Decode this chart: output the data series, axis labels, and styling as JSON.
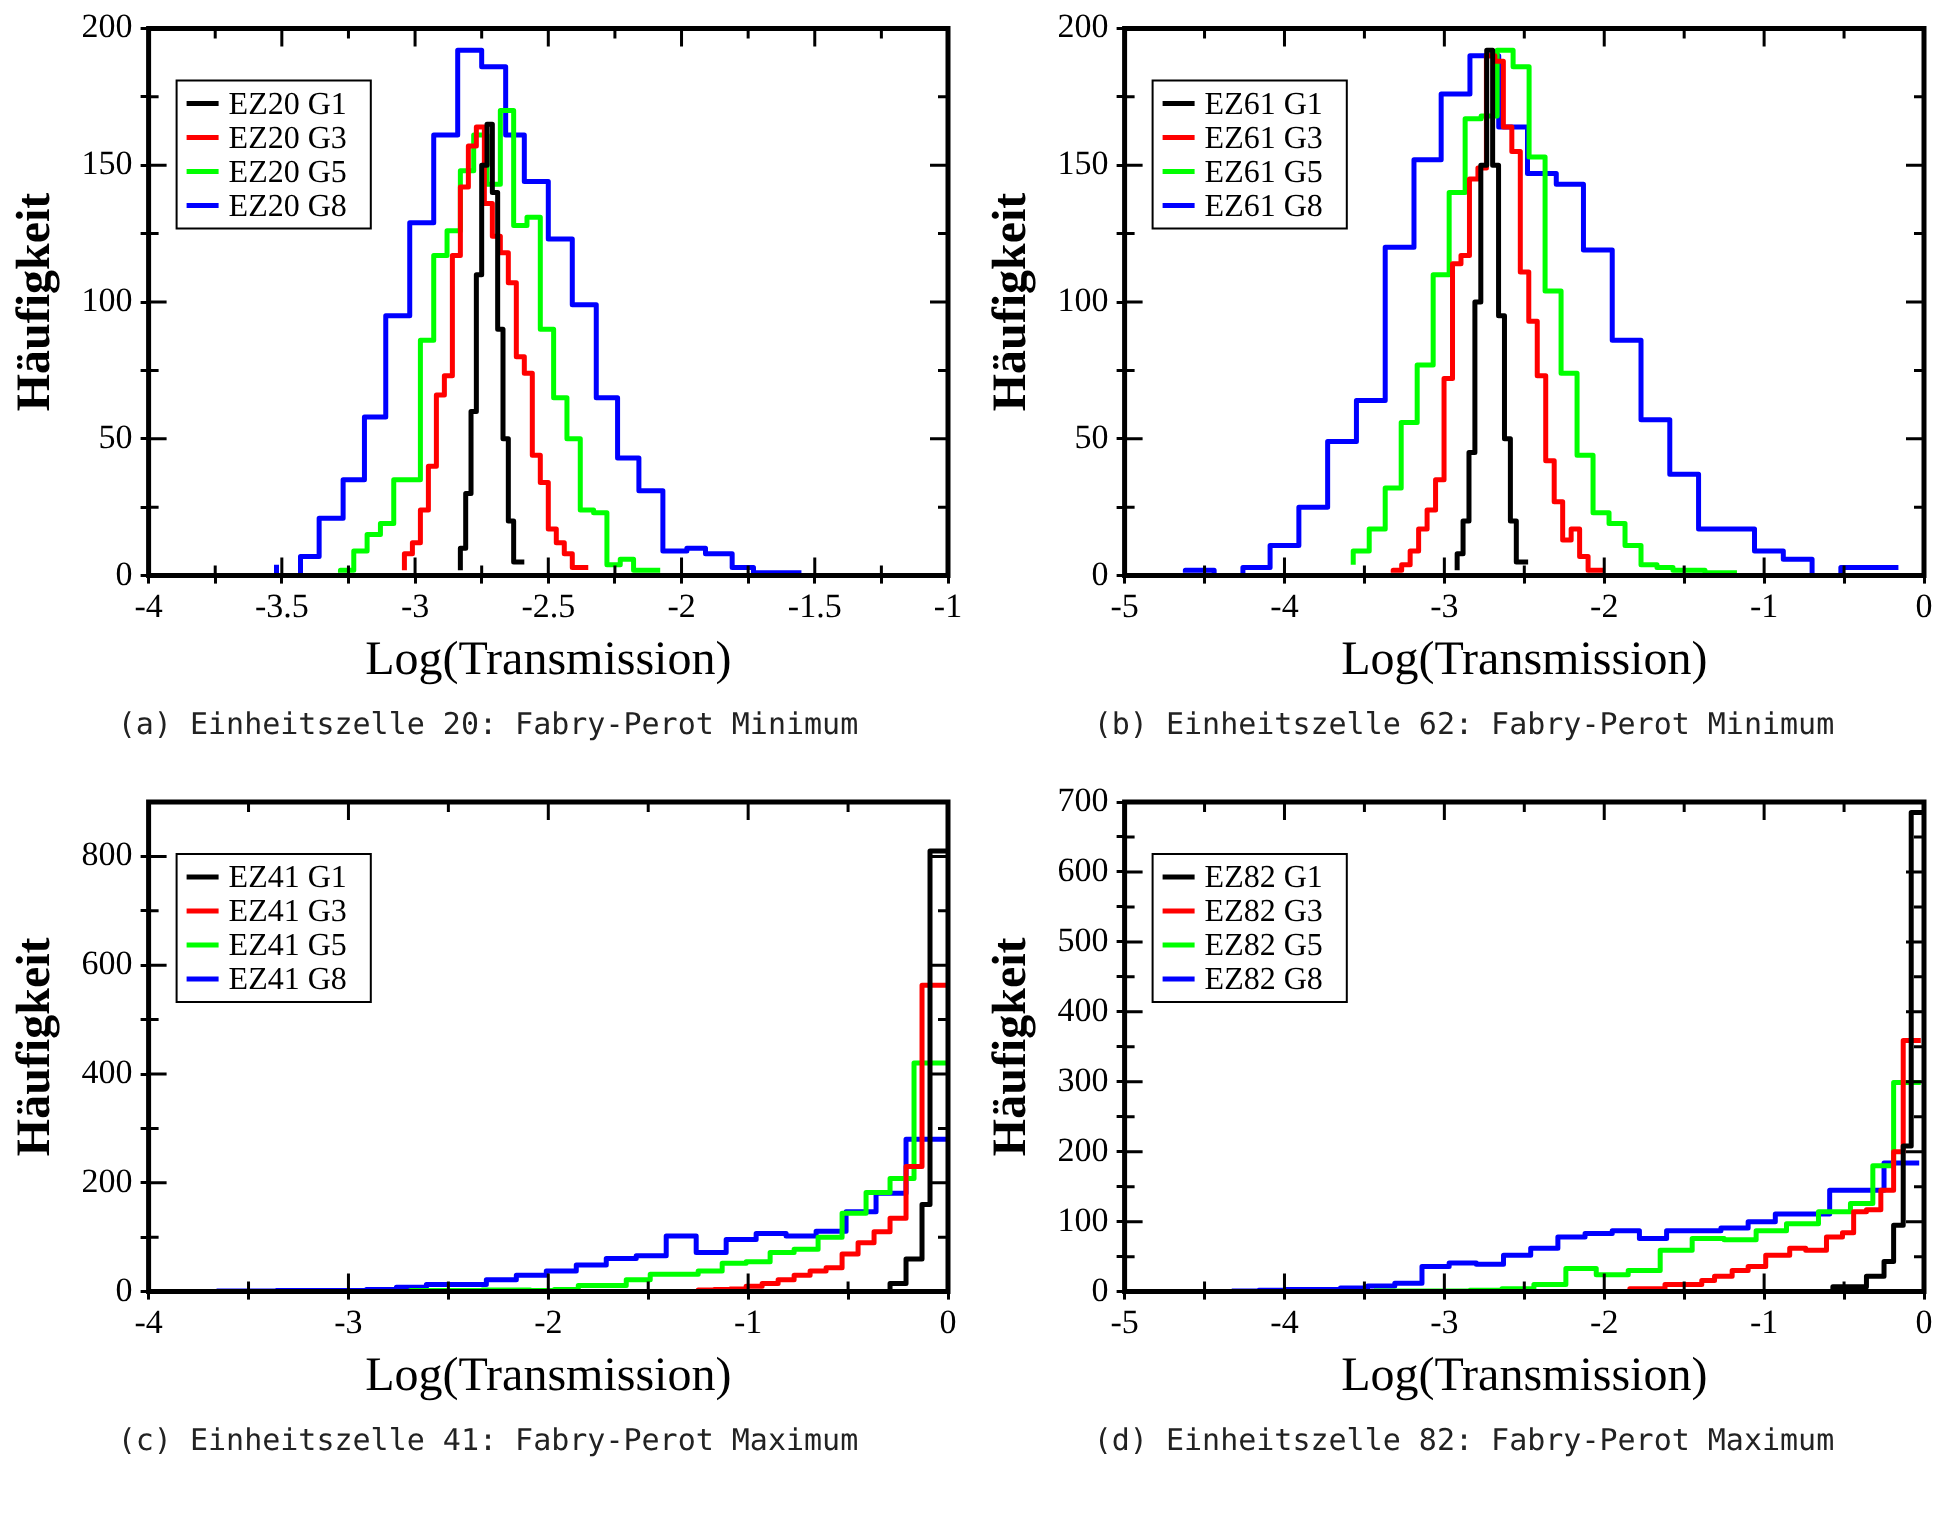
{
  "chart_data": [
    {
      "type": "step",
      "xlabel": "Log(Transmission)",
      "ylabel": "Häufigkeit",
      "legend": "top left",
      "annotations": [
        "(a) Einheitszelle 20: Fabry-Perot Minimum"
      ],
      "xlim": [
        -4,
        -1
      ],
      "xticks": [
        -4,
        {
          "value": -3.75,
          "label": null
        },
        -3.5,
        {
          "value": -3.25,
          "label": null
        },
        -3,
        {
          "value": -2.75,
          "label": null
        },
        -2.5,
        {
          "value": -2.25,
          "label": null
        },
        -2,
        {
          "value": -1.75,
          "label": null
        },
        -1.5,
        {
          "value": -1.25,
          "label": null
        },
        -1
      ],
      "ylim": [
        0,
        200
      ],
      "yticks": [
        0,
        {
          "value": 25,
          "label": null
        },
        50,
        {
          "value": 75,
          "label": null
        },
        100,
        {
          "value": 125,
          "label": null
        },
        150,
        {
          "value": 175,
          "label": null
        },
        200
      ],
      "series": [
        {
          "name": "EZ20 G1",
          "color": "#000000",
          "x": [
            -2.83,
            -2.81,
            -2.79,
            -2.77,
            -2.75,
            -2.73,
            -2.71,
            -2.69,
            -2.67,
            -2.65,
            -2.63,
            -2.61,
            -2.59
          ],
          "values": [
            2,
            10,
            30,
            60,
            110,
            150,
            165,
            140,
            90,
            50,
            20,
            5,
            5
          ]
        },
        {
          "name": "EZ20 G3",
          "color": "#ff0000",
          "x": [
            -3.04,
            -3.01,
            -2.98,
            -2.95,
            -2.92,
            -2.89,
            -2.86,
            -2.83,
            -2.8,
            -2.77,
            -2.74,
            -2.71,
            -2.68,
            -2.65,
            -2.62,
            -2.59,
            -2.56,
            -2.53,
            -2.5,
            -2.47,
            -2.44,
            -2.41,
            -2.38,
            -2.35
          ],
          "values": [
            2,
            8,
            12,
            24,
            40,
            66,
            73,
            117,
            142,
            157,
            164,
            136,
            124,
            118,
            107,
            80,
            74,
            44,
            34,
            17,
            12,
            8,
            3,
            3
          ]
        },
        {
          "name": "EZ20 G5",
          "color": "#00ff00",
          "x": [
            -3.28,
            -3.23,
            -3.18,
            -3.13,
            -3.08,
            -3.03,
            -2.98,
            -2.93,
            -2.88,
            -2.83,
            -2.78,
            -2.73,
            -2.68,
            -2.63,
            -2.58,
            -2.53,
            -2.48,
            -2.43,
            -2.38,
            -2.33,
            -2.28,
            -2.23,
            -2.18,
            -2.13,
            -2.08
          ],
          "values": [
            1,
            2,
            9,
            15,
            19,
            35,
            35,
            86,
            117,
            126,
            148,
            161,
            143,
            170,
            128,
            131,
            90,
            65,
            50,
            24,
            23,
            4,
            6,
            2,
            2
          ]
        },
        {
          "name": "EZ20 G8",
          "color": "#0000ff",
          "x": [
            -3.52,
            -3.43,
            -3.36,
            -3.27,
            -3.19,
            -3.11,
            -3.02,
            -2.93,
            -2.84,
            -2.75,
            -2.66,
            -2.59,
            -2.5,
            -2.41,
            -2.32,
            -2.24,
            -2.16,
            -2.07,
            -1.98,
            -1.91,
            -1.81,
            -1.73,
            -1.64,
            -1.55
          ],
          "values": [
            4,
            0,
            7,
            21,
            35,
            58,
            95,
            129,
            161,
            192,
            186,
            161,
            144,
            123,
            99,
            65,
            43,
            31,
            9,
            10,
            8,
            3,
            1,
            1
          ]
        }
      ]
    },
    {
      "type": "step",
      "xlabel": "Log(Transmission)",
      "ylabel": "Häufigkeit",
      "legend": "top left",
      "annotations": [
        "(b) Einheitszelle 62: Fabry-Perot Minimum"
      ],
      "xlim": [
        -5,
        0
      ],
      "xticks": [
        -5,
        {
          "value": -4.5,
          "label": null
        },
        -4,
        {
          "value": -3.5,
          "label": null
        },
        -3,
        {
          "value": -2.5,
          "label": null
        },
        -2,
        {
          "value": -1.5,
          "label": null
        },
        -1,
        {
          "value": -0.5,
          "label": null
        },
        0
      ],
      "ylim": [
        0,
        200
      ],
      "yticks": [
        0,
        {
          "value": 25,
          "label": null
        },
        50,
        {
          "value": 75,
          "label": null
        },
        100,
        {
          "value": 125,
          "label": null
        },
        150,
        {
          "value": 175,
          "label": null
        },
        200
      ],
      "series": [
        {
          "name": "EZ61 G1",
          "color": "#000000",
          "x": [
            -2.92,
            -2.883,
            -2.846,
            -2.809,
            -2.772,
            -2.735,
            -2.698,
            -2.661,
            -2.624,
            -2.587,
            -2.55,
            -2.513,
            -2.476
          ],
          "values": [
            2,
            8,
            20,
            45,
            100,
            150,
            192,
            150,
            95,
            50,
            20,
            5,
            5
          ]
        },
        {
          "name": "EZ61 G3",
          "color": "#ff0000",
          "x": [
            -3.32,
            -3.267,
            -3.214,
            -3.161,
            -3.108,
            -3.055,
            -3.002,
            -2.949,
            -2.896,
            -2.843,
            -2.79,
            -2.737,
            -2.684,
            -2.631,
            -2.578,
            -2.525,
            -2.472,
            -2.419,
            -2.366,
            -2.313,
            -2.26,
            -2.207,
            -2.154,
            -2.101,
            -2.048,
            -1.995
          ],
          "values": [
            1,
            2,
            4,
            9,
            17,
            24,
            35,
            72,
            114,
            117,
            145,
            149,
            190,
            188,
            164,
            155,
            111,
            93,
            73,
            42,
            27,
            13,
            17,
            7,
            2,
            2
          ]
        },
        {
          "name": "EZ61 G5",
          "color": "#00ff00",
          "x": [
            -3.57,
            -3.47,
            -3.37,
            -3.27,
            -3.17,
            -3.07,
            -2.97,
            -2.87,
            -2.77,
            -2.67,
            -2.57,
            -2.47,
            -2.37,
            -2.27,
            -2.17,
            -2.07,
            -1.97,
            -1.87,
            -1.77,
            -1.67,
            -1.57,
            -1.47,
            -1.37,
            -1.27,
            -1.17
          ],
          "values": [
            4,
            9,
            17,
            32,
            56,
            77,
            110,
            140,
            167,
            168,
            192,
            186,
            153,
            104,
            74,
            44,
            23,
            19,
            11,
            4,
            3,
            2,
            2,
            1,
            1
          ]
        },
        {
          "name": "EZ61 G8",
          "color": "#0000ff",
          "x": [
            -4.62,
            -4.44,
            -4.26,
            -4.09,
            -3.91,
            -3.73,
            -3.55,
            -3.37,
            -3.19,
            -3.02,
            -2.84,
            -2.66,
            -2.48,
            -2.3,
            -2.13,
            -1.95,
            -1.77,
            -1.59,
            -1.41,
            -1.23,
            -1.06,
            -0.88,
            -0.7,
            -0.52,
            -0.34,
            -0.16
          ],
          "values": [
            1,
            2,
            0,
            3,
            11,
            25,
            49,
            64,
            120,
            152,
            176,
            190,
            164,
            147,
            143,
            119,
            86,
            57,
            37,
            17,
            17,
            9,
            6,
            0,
            3,
            3
          ]
        }
      ]
    },
    {
      "type": "step",
      "xlabel": "Log(Transmission)",
      "ylabel": "Häufigkeit",
      "legend": "top left",
      "annotations": [
        "(c) Einheitszelle 41: Fabry-Perot Maximum"
      ],
      "xlim": [
        -4,
        0
      ],
      "xticks": [
        -4,
        {
          "value": -3.5,
          "label": null
        },
        -3,
        {
          "value": -2.5,
          "label": null
        },
        -2,
        {
          "value": -1.5,
          "label": null
        },
        -1,
        {
          "value": -0.5,
          "label": null
        },
        0
      ],
      "ylim": [
        0,
        900
      ],
      "yticks": [
        0,
        {
          "value": 100,
          "label": null
        },
        200,
        {
          "value": 300,
          "label": null
        },
        400,
        {
          "value": 500,
          "label": null
        },
        600,
        {
          "value": 700,
          "label": null
        },
        800
      ],
      "series": [
        {
          "name": "EZ41 G1",
          "color": "#000000",
          "x": [
            -0.29,
            -0.21,
            -0.13,
            -0.09,
            -0.05,
            -0.01
          ],
          "values": [
            2,
            15,
            60,
            160,
            810,
            810
          ]
        },
        {
          "name": "EZ41 G3",
          "color": "#ff0000",
          "x": [
            -1.25,
            -1.17,
            -1.09,
            -1.01,
            -0.93,
            -0.85,
            -0.77,
            -0.69,
            -0.61,
            -0.53,
            -0.45,
            -0.37,
            -0.29,
            -0.21,
            -0.13,
            -0.05,
            -0.01
          ],
          "values": [
            1,
            3,
            4,
            5,
            10,
            15,
            22,
            30,
            38,
            44,
            69,
            90,
            110,
            135,
            230,
            563,
            563
          ]
        },
        {
          "name": "EZ41 G5",
          "color": "#00ff00",
          "x": [
            -2.69,
            -2.57,
            -2.45,
            -2.33,
            -2.21,
            -2.09,
            -1.97,
            -1.85,
            -1.73,
            -1.61,
            -1.49,
            -1.37,
            -1.25,
            -1.13,
            -1.01,
            -0.89,
            -0.77,
            -0.65,
            -0.53,
            -0.41,
            -0.29,
            -0.17,
            -0.05,
            -0.01
          ],
          "values": [
            1,
            2,
            2,
            2,
            3,
            3,
            2,
            4,
            11,
            11,
            22,
            32,
            32,
            38,
            52,
            55,
            72,
            78,
            100,
            144,
            182,
            208,
            420,
            420
          ]
        },
        {
          "name": "EZ41 G8",
          "color": "#0000ff",
          "x": [
            -3.66,
            -3.51,
            -3.36,
            -3.21,
            -3.06,
            -2.91,
            -2.76,
            -2.61,
            -2.46,
            -2.31,
            -2.16,
            -2.01,
            -1.86,
            -1.71,
            -1.56,
            -1.41,
            -1.26,
            -1.11,
            -0.96,
            -0.81,
            -0.66,
            -0.51,
            -0.36,
            -0.21,
            -0.06,
            -0.01
          ],
          "values": [
            1,
            1,
            1,
            2,
            2,
            2,
            4,
            8,
            13,
            13,
            22,
            30,
            38,
            49,
            61,
            66,
            102,
            72,
            96,
            107,
            102,
            111,
            147,
            181,
            280,
            280
          ]
        }
      ]
    },
    {
      "type": "step",
      "xlabel": "Log(Transmission)",
      "ylabel": "Häufigkeit",
      "legend": "top left",
      "annotations": [
        "(d) Einheitszelle 82: Fabry-Perot Maximum"
      ],
      "xlim": [
        -5,
        0
      ],
      "xticks": [
        -5,
        {
          "value": -4.5,
          "label": null
        },
        -4,
        {
          "value": -3.5,
          "label": null
        },
        -3,
        {
          "value": -2.5,
          "label": null
        },
        -2,
        {
          "value": -1.5,
          "label": null
        },
        -1,
        {
          "value": -0.5,
          "label": null
        },
        0
      ],
      "ylim": [
        0,
        700
      ],
      "yticks": [
        0,
        {
          "value": 50,
          "label": null
        },
        100,
        {
          "value": 150,
          "label": null
        },
        200,
        {
          "value": 250,
          "label": null
        },
        300,
        {
          "value": 350,
          "label": null
        },
        400,
        {
          "value": 450,
          "label": null
        },
        500,
        {
          "value": 550,
          "label": null
        },
        600,
        {
          "value": 650,
          "label": null
        },
        700
      ],
      "series": [
        {
          "name": "EZ82 G1",
          "color": "#000000",
          "x": [
            -0.57,
            -0.36,
            -0.25,
            -0.19,
            -0.13,
            -0.08,
            -0.05,
            -0.01
          ],
          "values": [
            2,
            7,
            22,
            43,
            95,
            208,
            685,
            685
          ]
        },
        {
          "name": "EZ82 G3",
          "color": "#ff0000",
          "x": [
            -1.84,
            -1.62,
            -1.39,
            -1.31,
            -1.2,
            -1.1,
            -0.99,
            -0.84,
            -0.74,
            -0.61,
            -0.51,
            -0.44,
            -0.36,
            -0.27,
            -0.19,
            -0.13,
            -0.07,
            -0.02
          ],
          "values": [
            2,
            4,
            10,
            16,
            22,
            30,
            36,
            52,
            62,
            59,
            78,
            84,
            114,
            117,
            145,
            200,
            359,
            359
          ]
        },
        {
          "name": "EZ82 G5",
          "color": "#00ff00",
          "x": [
            -3.44,
            -3.24,
            -3.04,
            -2.84,
            -2.64,
            -2.44,
            -2.24,
            -2.05,
            -1.85,
            -1.65,
            -1.45,
            -1.25,
            -1.05,
            -0.86,
            -0.66,
            -0.46,
            -0.32,
            -0.19,
            -0.06,
            -0.02
          ],
          "values": [
            1,
            1,
            1,
            1,
            2,
            4,
            10,
            33,
            24,
            30,
            59,
            76,
            74,
            87,
            97,
            114,
            126,
            180,
            299,
            299
          ]
        },
        {
          "name": "EZ82 G8",
          "color": "#0000ff",
          "x": [
            -4.33,
            -4.16,
            -3.99,
            -3.82,
            -3.65,
            -3.48,
            -3.31,
            -3.14,
            -2.97,
            -2.8,
            -2.63,
            -2.46,
            -2.29,
            -2.12,
            -1.95,
            -1.78,
            -1.61,
            -1.44,
            -1.27,
            -1.1,
            -0.93,
            -0.76,
            -0.59,
            -0.42,
            -0.25,
            -0.08,
            -0.03
          ],
          "values": [
            2,
            1,
            2,
            3,
            3,
            5,
            8,
            12,
            36,
            41,
            39,
            52,
            62,
            78,
            83,
            87,
            76,
            87,
            87,
            91,
            100,
            111,
            111,
            145,
            145,
            184,
            184
          ]
        }
      ]
    }
  ]
}
